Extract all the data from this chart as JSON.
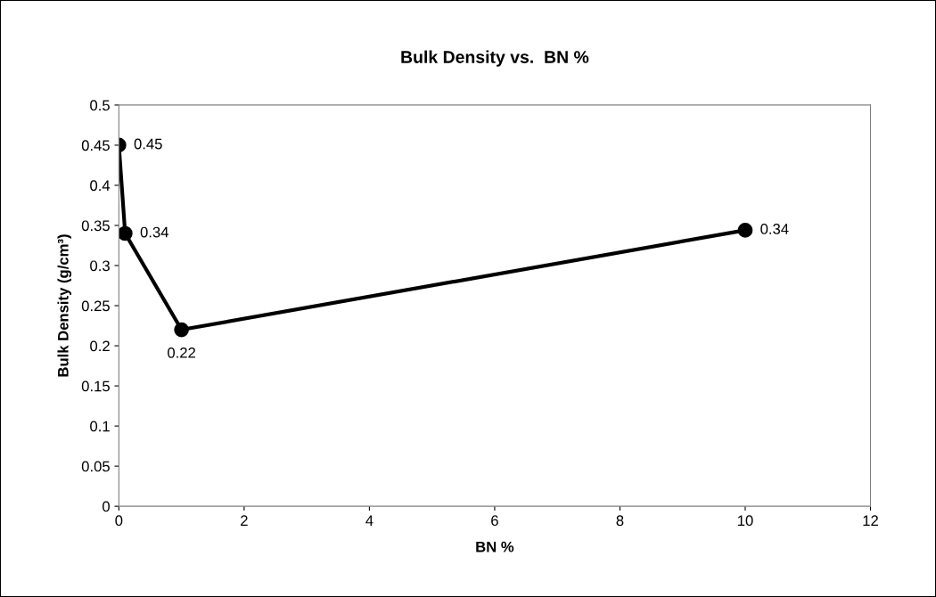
{
  "chart_data": {
    "type": "line",
    "title": "Bulk Density vs.  BN %",
    "xlabel": "BN %",
    "ylabel": "Bulk Density (g/cm³)",
    "x": [
      0,
      0.1,
      1,
      10
    ],
    "series": [
      {
        "color": "#000000",
        "values": [
          0.45,
          0.34,
          0.22,
          0.344
        ],
        "value_labels": [
          "0.45",
          "0.34",
          "0.22",
          "0.34"
        ]
      }
    ],
    "xlim": [
      0,
      12
    ],
    "xticks": [
      0,
      2,
      4,
      6,
      8,
      10,
      12
    ],
    "ylim": [
      0,
      0.5
    ],
    "yticks": [
      0,
      0.05,
      0.1,
      0.15,
      0.2,
      0.25,
      0.3,
      0.35,
      0.4,
      0.45,
      0.5
    ],
    "marker": "circle",
    "line_style": "solid",
    "grid": false
  }
}
